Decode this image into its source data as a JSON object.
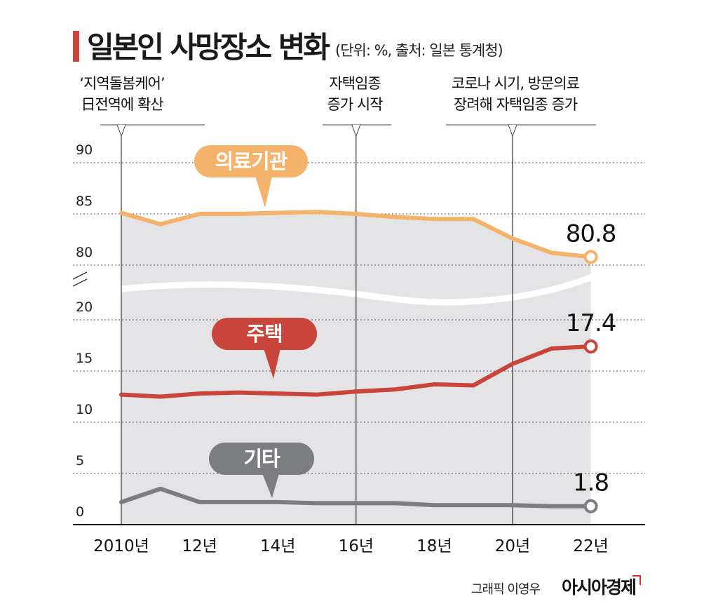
{
  "title": "일본인 사망장소 변화",
  "unit": "(단위: %, 출처: 일본 통계청)",
  "credit": {
    "graphic": "그래픽 이영우",
    "publisher": "아시아경제"
  },
  "annotations": [
    {
      "lines": [
        "‘지역돌봄케어’",
        "日전역에 확산"
      ],
      "year": 2010
    },
    {
      "lines": [
        "자택임종",
        "증가 시작"
      ],
      "year": 2016
    },
    {
      "lines": [
        "코로나 시기, 방문의료",
        "장려해 자택임종 증가"
      ],
      "year": 2020
    }
  ],
  "chart_data": {
    "type": "line",
    "title": "일본인 사망장소 변화",
    "xlabel": "",
    "ylabel": "%",
    "x": [
      2010,
      2011,
      2012,
      2013,
      2014,
      2015,
      2016,
      2017,
      2018,
      2019,
      2020,
      2021,
      2022
    ],
    "x_tick_labels": [
      "2010년",
      "12년",
      "14년",
      "16년",
      "18년",
      "20년",
      "22년"
    ],
    "x_tick_values": [
      2010,
      2012,
      2014,
      2016,
      2018,
      2020,
      2022
    ],
    "upper_axis": {
      "ylim": [
        80,
        90
      ],
      "ticks": [
        "90",
        "85",
        "80"
      ]
    },
    "lower_axis": {
      "ylim": [
        0,
        20
      ],
      "ticks": [
        "20",
        "15",
        "10",
        "5",
        "0"
      ]
    },
    "axis_break": true,
    "series": [
      {
        "name": "의료기관",
        "color": "#f5b26b",
        "axis": "upper",
        "values": [
          85.1,
          84.0,
          85.0,
          85.0,
          85.1,
          85.2,
          85.0,
          84.7,
          84.5,
          84.5,
          82.6,
          81.2,
          80.8
        ],
        "end_label": "80.8"
      },
      {
        "name": "주택",
        "color": "#c9443a",
        "axis": "lower",
        "values": [
          12.7,
          12.5,
          12.8,
          12.9,
          12.8,
          12.7,
          13.0,
          13.2,
          13.7,
          13.6,
          15.7,
          17.2,
          17.4
        ],
        "end_label": "17.4"
      },
      {
        "name": "기타",
        "color": "#7c7d80",
        "axis": "lower",
        "values": [
          2.2,
          3.5,
          2.2,
          2.2,
          2.2,
          2.1,
          2.1,
          2.1,
          1.9,
          1.9,
          1.9,
          1.8,
          1.8
        ],
        "end_label": "1.8"
      }
    ]
  }
}
